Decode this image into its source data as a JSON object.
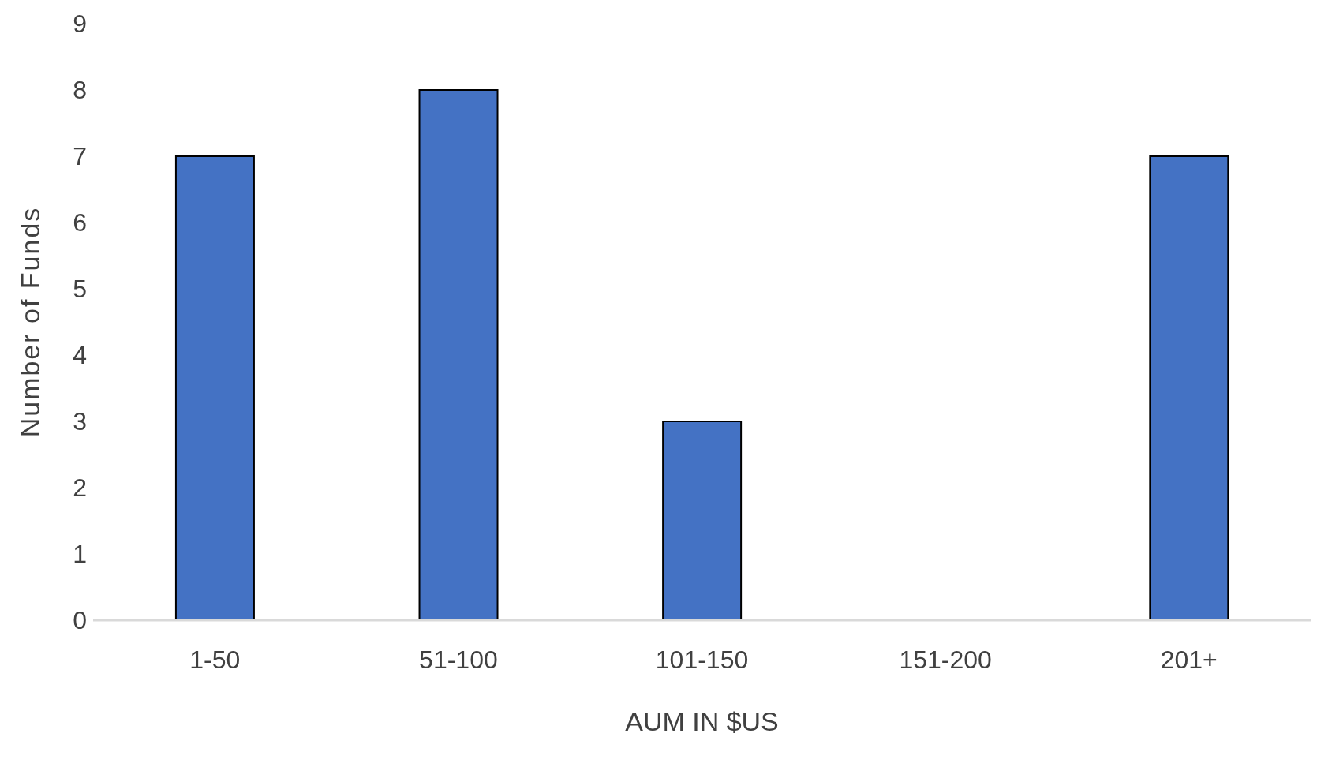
{
  "chart_data": {
    "type": "bar",
    "xlabel": "AUM IN $US",
    "ylabel": "Number of Funds",
    "categories": [
      "1-50",
      "51-100",
      "101-150",
      "151-200",
      "201+"
    ],
    "values": [
      7,
      8,
      3,
      0,
      7
    ],
    "color": "#4472c4",
    "ylim": [
      0,
      9
    ],
    "yticks": [
      0,
      1,
      2,
      3,
      4,
      5,
      6,
      7,
      8,
      9
    ]
  }
}
